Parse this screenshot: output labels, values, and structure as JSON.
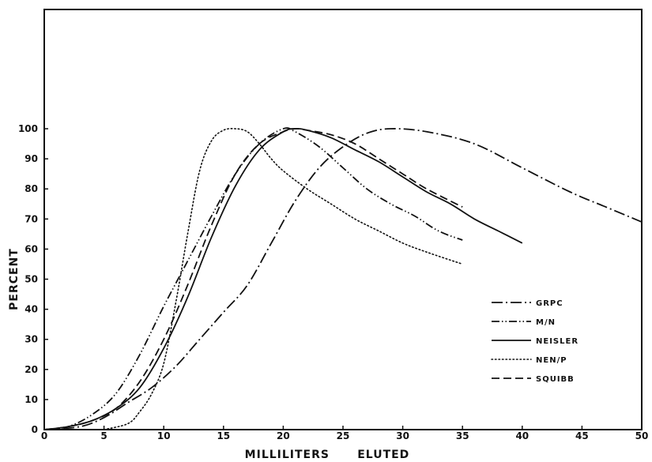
{
  "chart_data": {
    "type": "line",
    "title": "",
    "xlabel": "MILLILITERS ELUTED",
    "ylabel": "PERCENT",
    "xlim": [
      0,
      50
    ],
    "ylim": [
      0,
      100
    ],
    "xticks": [
      0,
      5,
      10,
      15,
      20,
      25,
      30,
      35,
      40,
      45,
      50
    ],
    "yticks": [
      0,
      10,
      20,
      30,
      40,
      50,
      60,
      70,
      80,
      90,
      100
    ],
    "grid": false,
    "legend_position": "lower-right",
    "series": [
      {
        "name": "GRPC",
        "style": "dash-dot",
        "points": [
          [
            0,
            0
          ],
          [
            3,
            1
          ],
          [
            5,
            4
          ],
          [
            7,
            9
          ],
          [
            9,
            14
          ],
          [
            11,
            21
          ],
          [
            13,
            30
          ],
          [
            15,
            39
          ],
          [
            17,
            48
          ],
          [
            19,
            62
          ],
          [
            21,
            76
          ],
          [
            23,
            87
          ],
          [
            25,
            94
          ],
          [
            27,
            98.5
          ],
          [
            29,
            100
          ],
          [
            32,
            99
          ],
          [
            36,
            95
          ],
          [
            40,
            87
          ],
          [
            44,
            79
          ],
          [
            47,
            74
          ],
          [
            50,
            69
          ]
        ]
      },
      {
        "name": "M/N",
        "style": "dash-dot-dot",
        "points": [
          [
            0,
            0
          ],
          [
            2,
            1
          ],
          [
            4,
            5
          ],
          [
            6,
            12
          ],
          [
            8,
            25
          ],
          [
            10,
            41
          ],
          [
            12,
            56
          ],
          [
            14,
            71
          ],
          [
            16,
            85
          ],
          [
            18,
            95
          ],
          [
            20,
            100
          ],
          [
            21,
            99
          ],
          [
            23,
            94
          ],
          [
            25,
            87
          ],
          [
            27,
            80
          ],
          [
            29,
            75
          ],
          [
            31,
            71
          ],
          [
            33,
            66
          ],
          [
            35,
            63
          ]
        ]
      },
      {
        "name": "NEISLER",
        "style": "solid",
        "points": [
          [
            0,
            0
          ],
          [
            2,
            1
          ],
          [
            4,
            3
          ],
          [
            6,
            7
          ],
          [
            8,
            14
          ],
          [
            10,
            27
          ],
          [
            12,
            44
          ],
          [
            14,
            64
          ],
          [
            16,
            81
          ],
          [
            18,
            93
          ],
          [
            20,
            99
          ],
          [
            21,
            100
          ],
          [
            22,
            99.5
          ],
          [
            24,
            97
          ],
          [
            26,
            93
          ],
          [
            28,
            89
          ],
          [
            30,
            84
          ],
          [
            32,
            79
          ],
          [
            34,
            75
          ],
          [
            36,
            70
          ],
          [
            38,
            66
          ],
          [
            40,
            62
          ]
        ]
      },
      {
        "name": "NEN/P",
        "style": "dotted",
        "points": [
          [
            5,
            0
          ],
          [
            7,
            2
          ],
          [
            8,
            6
          ],
          [
            9,
            12
          ],
          [
            10,
            22
          ],
          [
            11,
            42
          ],
          [
            12,
            65
          ],
          [
            13,
            86
          ],
          [
            14,
            96
          ],
          [
            15,
            99.5
          ],
          [
            16,
            100
          ],
          [
            17,
            99
          ],
          [
            18,
            95
          ],
          [
            19,
            90
          ],
          [
            20,
            86
          ],
          [
            22,
            80
          ],
          [
            24,
            75
          ],
          [
            26,
            70
          ],
          [
            28,
            66
          ],
          [
            30,
            62
          ],
          [
            32,
            59
          ],
          [
            35,
            55
          ]
        ]
      },
      {
        "name": "SQUIBB",
        "style": "dashed",
        "points": [
          [
            0,
            0
          ],
          [
            2,
            1
          ],
          [
            4,
            3
          ],
          [
            6,
            7
          ],
          [
            8,
            16
          ],
          [
            10,
            30
          ],
          [
            12,
            48
          ],
          [
            14,
            68
          ],
          [
            16,
            85
          ],
          [
            18,
            95
          ],
          [
            20,
            99
          ],
          [
            21,
            100
          ],
          [
            22,
            99.5
          ],
          [
            24,
            98
          ],
          [
            26,
            95
          ],
          [
            28,
            90
          ],
          [
            30,
            85
          ],
          [
            32,
            80
          ],
          [
            35,
            74
          ]
        ]
      }
    ]
  }
}
